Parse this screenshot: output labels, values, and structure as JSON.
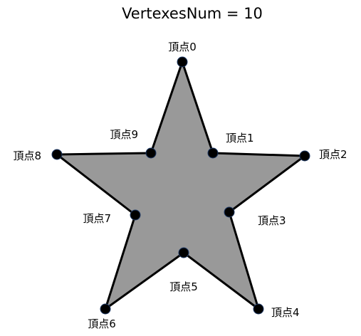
{
  "title": "VertexesNum = 10",
  "vertex_labels": [
    "頂点0",
    "頂点1",
    "頂点2",
    "頂点3",
    "頂点4",
    "頂点5",
    "頂点6",
    "頂点7",
    "頂点8",
    "頂点9"
  ],
  "colors": {
    "fill": "#999999",
    "stroke": "#000000",
    "vertex": "#000000",
    "vertex_ring": "#1f3a66"
  }
}
